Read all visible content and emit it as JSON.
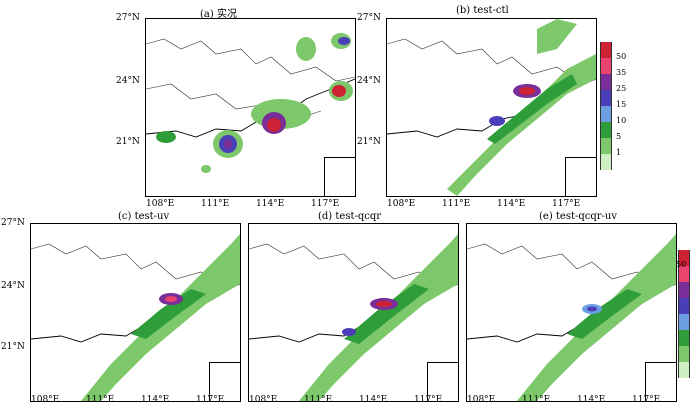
{
  "panels": [
    {
      "title": "(a) 实况"
    },
    {
      "title": "(b) test-ctl"
    },
    {
      "title": "(c) test-uv"
    },
    {
      "title": "(d) test-qcqr"
    },
    {
      "title": "(e) test-qcqr-uv"
    }
  ],
  "lat_ticks": [
    "27°N",
    "24°N",
    "21°N"
  ],
  "lon_ticks": [
    "108°E",
    "111°E",
    "114°E",
    "117°E"
  ],
  "colorbar": {
    "levels": [
      "50",
      "35",
      "25",
      "15",
      "10",
      "5",
      "1"
    ],
    "colors": [
      "#cc2233",
      "#e8446e",
      "#7a2e9a",
      "#4a3db8",
      "#6a9ee0",
      "#2f9e3a",
      "#7cc86a",
      "#cfeec2"
    ]
  }
}
